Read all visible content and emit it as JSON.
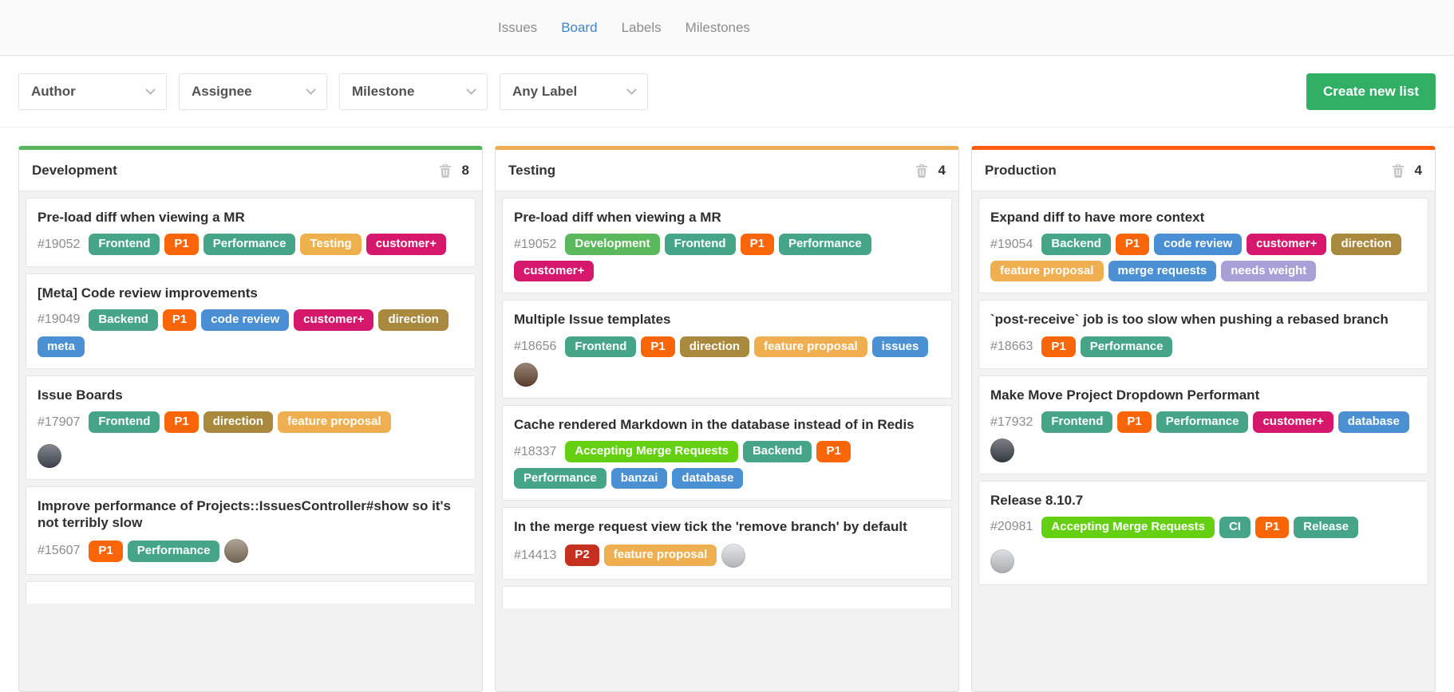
{
  "nav": {
    "tabs": [
      {
        "label": "Issues",
        "active": false
      },
      {
        "label": "Board",
        "active": true
      },
      {
        "label": "Labels",
        "active": false
      },
      {
        "label": "Milestones",
        "active": false
      }
    ],
    "active_color": "#3f83c9"
  },
  "filters": {
    "dropdowns": [
      "Author",
      "Assignee",
      "Milestone",
      "Any Label"
    ],
    "create_button_label": "Create new list"
  },
  "colors": {
    "create_button": "#31af64",
    "trash_icon": "#c8c8c8"
  },
  "label_colors": {
    "Frontend": "#45a586",
    "Backend": "#45a586",
    "Performance": "#45a586",
    "CI": "#45a586",
    "Release": "#45a586",
    "P1": "#fa6607",
    "P2": "#c5301f",
    "Testing": "#eeb04d",
    "feature proposal": "#efae4f",
    "customer+": "#d5186c",
    "code review": "#4a8fd3",
    "meta": "#4a90d3",
    "issues": "#4a90d3",
    "banzai": "#4a90d3",
    "database": "#4a90d3",
    "merge requests": "#4a90d3",
    "direction": "#a9893d",
    "Development": "#5cb85c",
    "Accepting Merge Requests": "#65d012",
    "needs weight": "#a8a0d7"
  },
  "board": {
    "columns": [
      {
        "name": "Development",
        "accent": "#56b65b",
        "count": "8",
        "peek": true,
        "cards": [
          {
            "title": "Pre-load diff when viewing a MR",
            "id": "#19052",
            "labels": [
              "Frontend",
              "P1",
              "Performance",
              "Testing",
              "customer+"
            ],
            "avatar": null
          },
          {
            "title": "[Meta] Code review improvements",
            "id": "#19049",
            "labels": [
              "Backend",
              "P1",
              "code review",
              "customer+",
              "direction",
              "meta"
            ],
            "avatar": null
          },
          {
            "title": "Issue Boards",
            "id": "#17907",
            "labels": [
              "Frontend",
              "P1",
              "direction",
              "feature proposal"
            ],
            "avatar": "#4a4f5a",
            "avatar_newline": true
          },
          {
            "title": "Improve performance of Projects::IssuesController#show so it's not terribly slow",
            "id": "#15607",
            "labels": [
              "P1",
              "Performance"
            ],
            "avatar": "#8a7965"
          }
        ]
      },
      {
        "name": "Testing",
        "accent": "#eeac55",
        "count": "4",
        "peek": true,
        "cards": [
          {
            "title": "Pre-load diff when viewing a MR",
            "id": "#19052",
            "labels": [
              "Development",
              "Frontend",
              "P1",
              "Performance",
              "customer+"
            ],
            "avatar": null
          },
          {
            "title": "Multiple Issue templates",
            "id": "#18656",
            "labels": [
              "Frontend",
              "P1",
              "direction",
              "feature proposal",
              "issues"
            ],
            "avatar": "#6b4a35"
          },
          {
            "title": "Cache rendered Markdown in the database instead of in Redis",
            "id": "#18337",
            "labels": [
              "Accepting Merge Requests",
              "Backend",
              "P1",
              "Performance",
              "banzai",
              "database"
            ],
            "avatar": null
          },
          {
            "title": "In the merge request view tick the 'remove branch' by default",
            "id": "#14413",
            "labels": [
              "P2",
              "feature proposal"
            ],
            "avatar": "#d8dbdd"
          }
        ]
      },
      {
        "name": "Production",
        "accent": "#fb5f0d",
        "count": "4",
        "peek": false,
        "cards": [
          {
            "title": "Expand diff to have more context",
            "id": "#19054",
            "labels": [
              "Backend",
              "P1",
              "code review",
              "customer+",
              "direction",
              "feature proposal",
              "merge requests",
              "needs weight"
            ],
            "avatar": null
          },
          {
            "title": "`post-receive` job is too slow when pushing a rebased branch",
            "id": "#18663",
            "labels": [
              "P1",
              "Performance"
            ],
            "avatar": null
          },
          {
            "title": "Make Move Project Dropdown Performant",
            "id": "#17932",
            "labels": [
              "Frontend",
              "P1",
              "Performance",
              "customer+",
              "database"
            ],
            "avatar": "#3f444d"
          },
          {
            "title": "Release 8.10.7",
            "id": "#20981",
            "labels": [
              "Accepting Merge Requests",
              "CI",
              "P1",
              "Release"
            ],
            "avatar": "#cdd2d6",
            "avatar_newline": true
          }
        ]
      }
    ]
  }
}
